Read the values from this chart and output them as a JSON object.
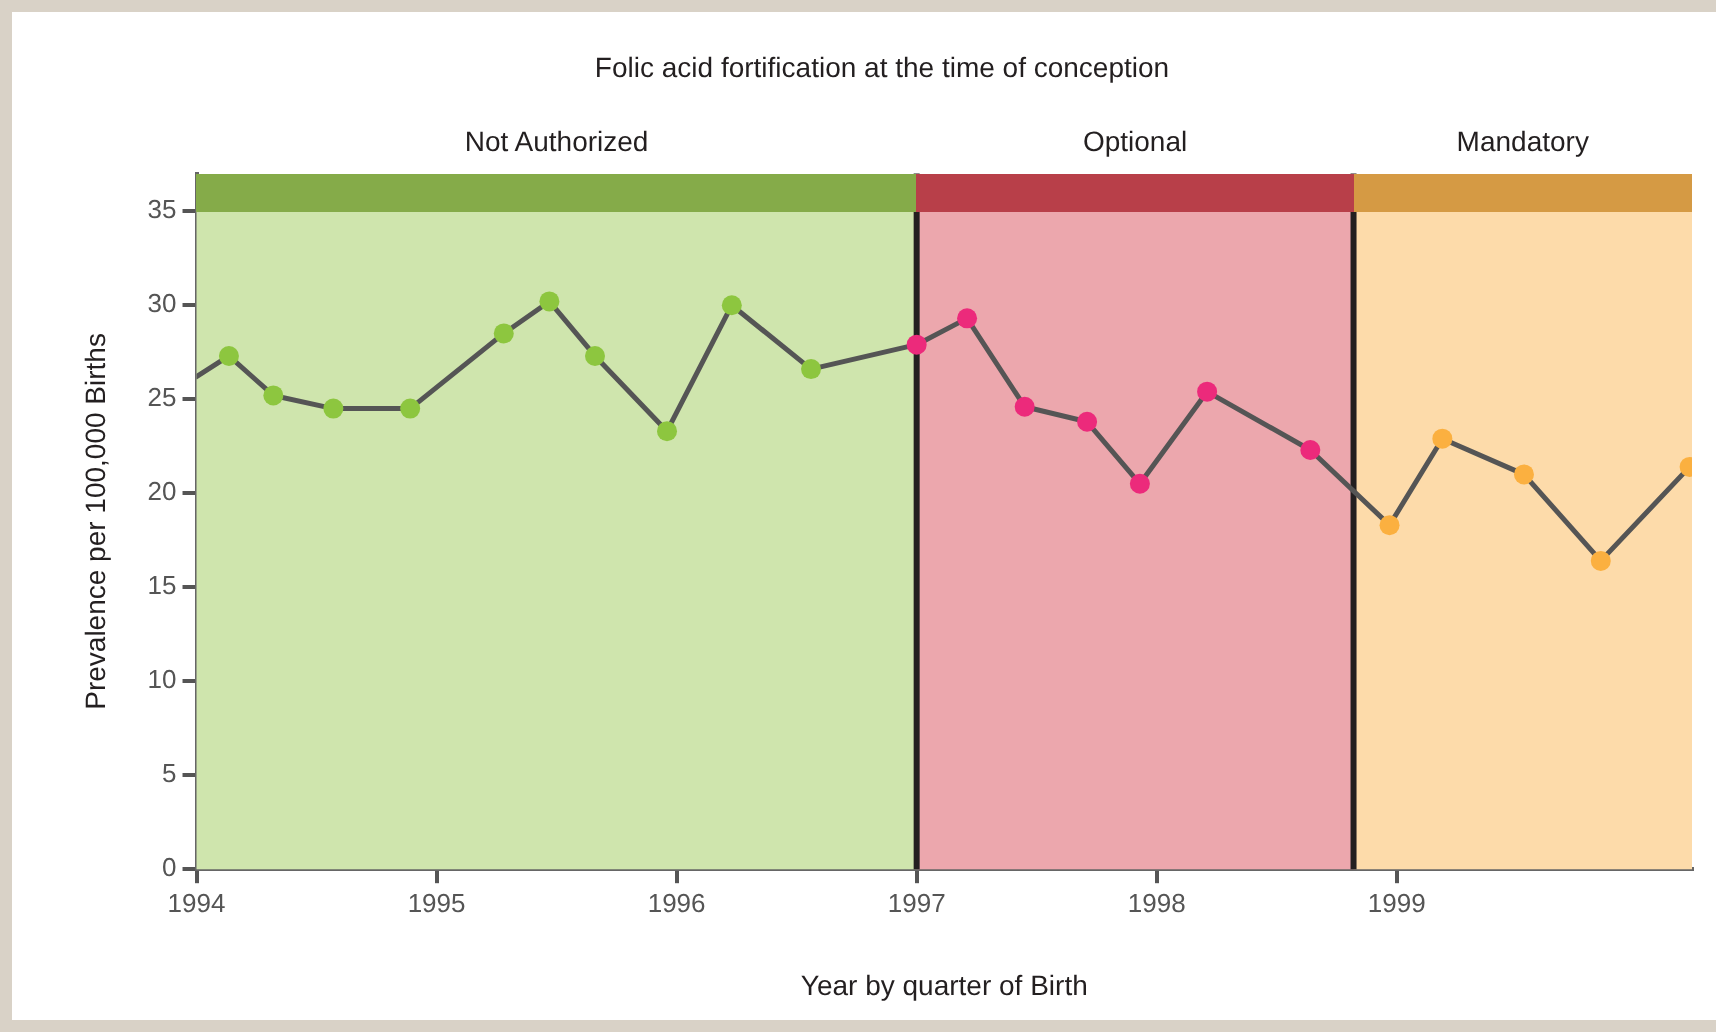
{
  "chart_data": {
    "type": "line",
    "title": "Folic acid fortification at the time of conception",
    "xlabel": "Year by quarter of Birth",
    "ylabel": "Prevalence per 100,000 Births",
    "xlim": [
      1994,
      2000.23
    ],
    "xticks": [
      1994,
      1995,
      1996,
      1997,
      1998,
      1999
    ],
    "ylim": [
      0,
      37
    ],
    "yticks": [
      0,
      5,
      10,
      15,
      20,
      25,
      30,
      35
    ],
    "grid": false,
    "legend": false,
    "marker": "circle",
    "line_style": "solid",
    "series": [
      {
        "color": "#555555",
        "x": [
          1994,
          1994.135,
          1994.32,
          1994.57,
          1994.89,
          1995.28,
          1995.47,
          1995.66,
          1995.96,
          1996.23,
          1996.56,
          1997.0,
          1997.21,
          1997.45,
          1997.71,
          1997.93,
          1998.21,
          1998.64,
          1998.97,
          1999.19,
          1999.53,
          1999.85,
          2000.22
        ],
        "values": [
          26.2,
          27.3,
          25.2,
          24.5,
          24.5,
          28.5,
          30.2,
          27.3,
          23.3,
          30.0,
          26.6,
          27.9,
          29.3,
          24.6,
          23.8,
          20.5,
          25.4,
          22.3,
          18.3,
          22.9,
          21.0,
          16.4,
          21.4
        ],
        "colors": [
          null,
          "#8dc63f",
          "#8dc63f",
          "#8dc63f",
          "#8dc63f",
          "#8dc63f",
          "#8dc63f",
          "#8dc63f",
          "#8dc63f",
          "#8dc63f",
          "#8dc63f",
          "#ec2a7b",
          "#ec2a7b",
          "#ec2a7b",
          "#ec2a7b",
          "#ec2a7b",
          "#ec2a7b",
          "#ec2a7b",
          "#fbb040",
          "#fbb040",
          "#fbb040",
          "#fbb040",
          "#fbb040"
        ]
      }
    ],
    "bands": [
      {
        "axis": "x",
        "from": 1994,
        "to": 1997,
        "label": "Not Authorized",
        "color": "#cfe5ad"
      },
      {
        "axis": "x",
        "from": 1997,
        "to": 1998.82,
        "label": "Optional",
        "color": "#eca7ad"
      },
      {
        "axis": "x",
        "from": 1998.82,
        "to": 2000.23,
        "label": "Mandatory",
        "color": "#fddbaa"
      }
    ],
    "ref_lines": [
      {
        "axis": "x",
        "value": 1997,
        "color": "#231f20"
      },
      {
        "axis": "x",
        "value": 1998.82,
        "color": "#231f20"
      }
    ]
  }
}
